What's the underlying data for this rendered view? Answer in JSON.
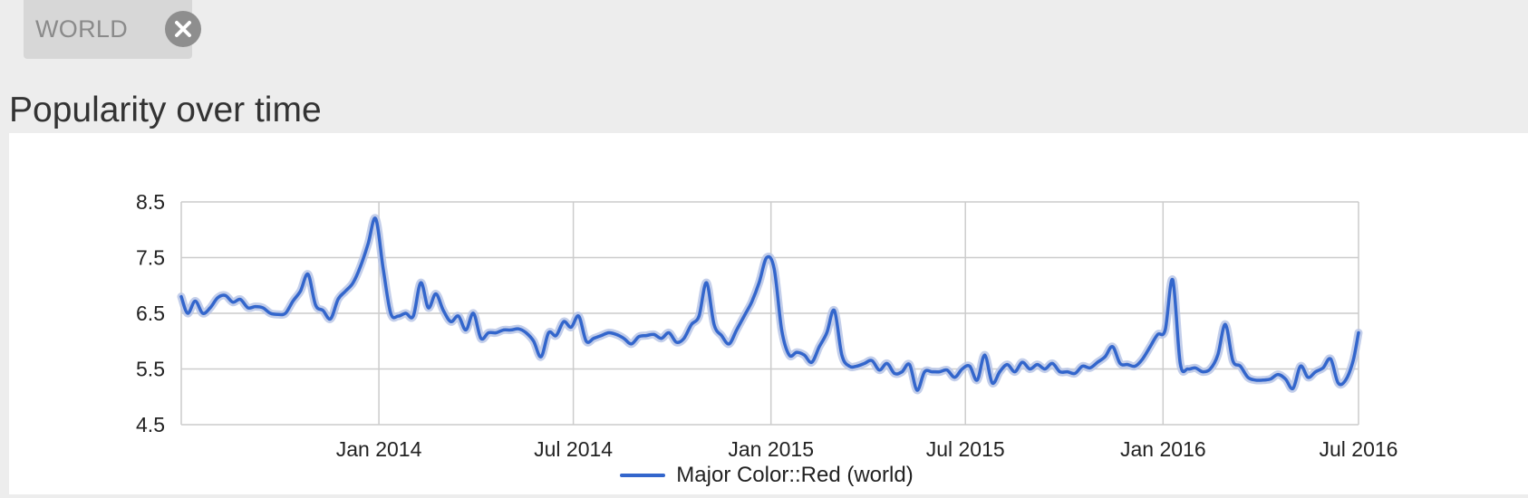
{
  "filter_chip": {
    "label": "WORLD",
    "close_icon": "close-icon"
  },
  "section_title": "Popularity over time",
  "colors": {
    "series": "#3366cc",
    "band": "#b9c6e6",
    "grid": "#cccccc",
    "axis_text": "#222222"
  },
  "chart_data": {
    "type": "line",
    "title": "",
    "xlabel": "",
    "ylabel": "",
    "ylim": [
      4.5,
      8.5
    ],
    "xlim": [
      "2013-07-01",
      "2016-07-01"
    ],
    "y_ticks": [
      "8.5",
      "7.5",
      "6.5",
      "5.5",
      "4.5"
    ],
    "x_ticks": [
      {
        "date": "2014-01-01",
        "label": "Jan 2014"
      },
      {
        "date": "2014-07-01",
        "label": "Jul 2014"
      },
      {
        "date": "2015-01-01",
        "label": "Jan 2015"
      },
      {
        "date": "2015-07-01",
        "label": "Jul 2015"
      },
      {
        "date": "2016-01-01",
        "label": "Jan 2016"
      },
      {
        "date": "2016-07-01",
        "label": "Jul 2016"
      }
    ],
    "grid": true,
    "legend_position": "bottom",
    "series": [
      {
        "name": "Major Color::Red (world)",
        "points": [
          [
            "2013-07-01",
            6.8
          ],
          [
            "2013-07-07",
            6.5
          ],
          [
            "2013-07-14",
            6.72
          ],
          [
            "2013-07-21",
            6.5
          ],
          [
            "2013-07-28",
            6.6
          ],
          [
            "2013-08-04",
            6.78
          ],
          [
            "2013-08-11",
            6.82
          ],
          [
            "2013-08-18",
            6.7
          ],
          [
            "2013-08-25",
            6.75
          ],
          [
            "2013-09-01",
            6.6
          ],
          [
            "2013-09-08",
            6.62
          ],
          [
            "2013-09-15",
            6.6
          ],
          [
            "2013-09-22",
            6.5
          ],
          [
            "2013-09-29",
            6.48
          ],
          [
            "2013-10-06",
            6.5
          ],
          [
            "2013-10-13",
            6.72
          ],
          [
            "2013-10-20",
            6.9
          ],
          [
            "2013-10-27",
            7.2
          ],
          [
            "2013-11-03",
            6.65
          ],
          [
            "2013-11-10",
            6.55
          ],
          [
            "2013-11-17",
            6.4
          ],
          [
            "2013-11-24",
            6.75
          ],
          [
            "2013-12-01",
            6.9
          ],
          [
            "2013-12-08",
            7.05
          ],
          [
            "2013-12-15",
            7.35
          ],
          [
            "2013-12-22",
            7.75
          ],
          [
            "2013-12-29",
            8.2
          ],
          [
            "2014-01-05",
            7.3
          ],
          [
            "2014-01-12",
            6.5
          ],
          [
            "2014-01-19",
            6.45
          ],
          [
            "2014-01-26",
            6.5
          ],
          [
            "2014-02-02",
            6.45
          ],
          [
            "2014-02-09",
            7.05
          ],
          [
            "2014-02-16",
            6.6
          ],
          [
            "2014-02-23",
            6.85
          ],
          [
            "2014-03-02",
            6.55
          ],
          [
            "2014-03-09",
            6.35
          ],
          [
            "2014-03-16",
            6.45
          ],
          [
            "2014-03-23",
            6.2
          ],
          [
            "2014-03-30",
            6.5
          ],
          [
            "2014-04-06",
            6.05
          ],
          [
            "2014-04-13",
            6.15
          ],
          [
            "2014-04-20",
            6.15
          ],
          [
            "2014-04-27",
            6.2
          ],
          [
            "2014-05-04",
            6.2
          ],
          [
            "2014-05-11",
            6.22
          ],
          [
            "2014-05-18",
            6.15
          ],
          [
            "2014-05-25",
            6.0
          ],
          [
            "2014-06-01",
            5.72
          ],
          [
            "2014-06-08",
            6.15
          ],
          [
            "2014-06-15",
            6.1
          ],
          [
            "2014-06-22",
            6.35
          ],
          [
            "2014-06-29",
            6.25
          ],
          [
            "2014-07-06",
            6.45
          ],
          [
            "2014-07-13",
            6.0
          ],
          [
            "2014-07-20",
            6.05
          ],
          [
            "2014-07-27",
            6.1
          ],
          [
            "2014-08-03",
            6.15
          ],
          [
            "2014-08-10",
            6.12
          ],
          [
            "2014-08-17",
            6.05
          ],
          [
            "2014-08-24",
            5.95
          ],
          [
            "2014-08-31",
            6.08
          ],
          [
            "2014-09-07",
            6.1
          ],
          [
            "2014-09-14",
            6.12
          ],
          [
            "2014-09-21",
            6.05
          ],
          [
            "2014-09-28",
            6.15
          ],
          [
            "2014-10-05",
            5.98
          ],
          [
            "2014-10-12",
            6.05
          ],
          [
            "2014-10-19",
            6.3
          ],
          [
            "2014-10-26",
            6.45
          ],
          [
            "2014-11-02",
            7.05
          ],
          [
            "2014-11-09",
            6.3
          ],
          [
            "2014-11-16",
            6.1
          ],
          [
            "2014-11-23",
            5.95
          ],
          [
            "2014-11-30",
            6.2
          ],
          [
            "2014-12-07",
            6.45
          ],
          [
            "2014-12-14",
            6.7
          ],
          [
            "2014-12-21",
            7.05
          ],
          [
            "2014-12-28",
            7.5
          ],
          [
            "2015-01-04",
            7.3
          ],
          [
            "2015-01-11",
            6.2
          ],
          [
            "2015-01-18",
            5.75
          ],
          [
            "2015-01-25",
            5.8
          ],
          [
            "2015-02-01",
            5.75
          ],
          [
            "2015-02-08",
            5.62
          ],
          [
            "2015-02-15",
            5.9
          ],
          [
            "2015-02-22",
            6.15
          ],
          [
            "2015-03-01",
            6.55
          ],
          [
            "2015-03-08",
            5.75
          ],
          [
            "2015-03-15",
            5.55
          ],
          [
            "2015-03-22",
            5.55
          ],
          [
            "2015-03-29",
            5.6
          ],
          [
            "2015-04-05",
            5.65
          ],
          [
            "2015-04-12",
            5.48
          ],
          [
            "2015-04-19",
            5.6
          ],
          [
            "2015-04-26",
            5.42
          ],
          [
            "2015-05-03",
            5.45
          ],
          [
            "2015-05-10",
            5.58
          ],
          [
            "2015-05-17",
            5.12
          ],
          [
            "2015-05-24",
            5.45
          ],
          [
            "2015-05-31",
            5.45
          ],
          [
            "2015-06-07",
            5.45
          ],
          [
            "2015-06-14",
            5.48
          ],
          [
            "2015-06-21",
            5.35
          ],
          [
            "2015-06-28",
            5.5
          ],
          [
            "2015-07-05",
            5.55
          ],
          [
            "2015-07-12",
            5.3
          ],
          [
            "2015-07-19",
            5.75
          ],
          [
            "2015-07-26",
            5.25
          ],
          [
            "2015-08-02",
            5.45
          ],
          [
            "2015-08-09",
            5.58
          ],
          [
            "2015-08-16",
            5.45
          ],
          [
            "2015-08-23",
            5.62
          ],
          [
            "2015-08-30",
            5.5
          ],
          [
            "2015-09-06",
            5.58
          ],
          [
            "2015-09-13",
            5.5
          ],
          [
            "2015-09-20",
            5.6
          ],
          [
            "2015-09-27",
            5.45
          ],
          [
            "2015-10-04",
            5.45
          ],
          [
            "2015-10-11",
            5.42
          ],
          [
            "2015-10-18",
            5.55
          ],
          [
            "2015-10-25",
            5.52
          ],
          [
            "2015-11-01",
            5.62
          ],
          [
            "2015-11-08",
            5.72
          ],
          [
            "2015-11-15",
            5.9
          ],
          [
            "2015-11-22",
            5.6
          ],
          [
            "2015-11-29",
            5.58
          ],
          [
            "2015-12-06",
            5.55
          ],
          [
            "2015-12-13",
            5.68
          ],
          [
            "2015-12-20",
            5.9
          ],
          [
            "2015-12-27",
            6.12
          ],
          [
            "2016-01-03",
            6.2
          ],
          [
            "2016-01-10",
            7.1
          ],
          [
            "2016-01-17",
            5.6
          ],
          [
            "2016-01-24",
            5.5
          ],
          [
            "2016-01-31",
            5.52
          ],
          [
            "2016-02-07",
            5.45
          ],
          [
            "2016-02-14",
            5.5
          ],
          [
            "2016-02-21",
            5.75
          ],
          [
            "2016-02-28",
            6.3
          ],
          [
            "2016-03-06",
            5.65
          ],
          [
            "2016-03-13",
            5.55
          ],
          [
            "2016-03-20",
            5.35
          ],
          [
            "2016-03-27",
            5.3
          ],
          [
            "2016-04-03",
            5.3
          ],
          [
            "2016-04-10",
            5.32
          ],
          [
            "2016-04-17",
            5.4
          ],
          [
            "2016-04-24",
            5.32
          ],
          [
            "2016-05-01",
            5.15
          ],
          [
            "2016-05-08",
            5.55
          ],
          [
            "2016-05-15",
            5.35
          ],
          [
            "2016-05-22",
            5.45
          ],
          [
            "2016-05-29",
            5.52
          ],
          [
            "2016-06-05",
            5.68
          ],
          [
            "2016-06-12",
            5.25
          ],
          [
            "2016-06-19",
            5.3
          ],
          [
            "2016-06-26",
            5.65
          ],
          [
            "2016-07-01",
            6.15
          ]
        ]
      }
    ]
  }
}
